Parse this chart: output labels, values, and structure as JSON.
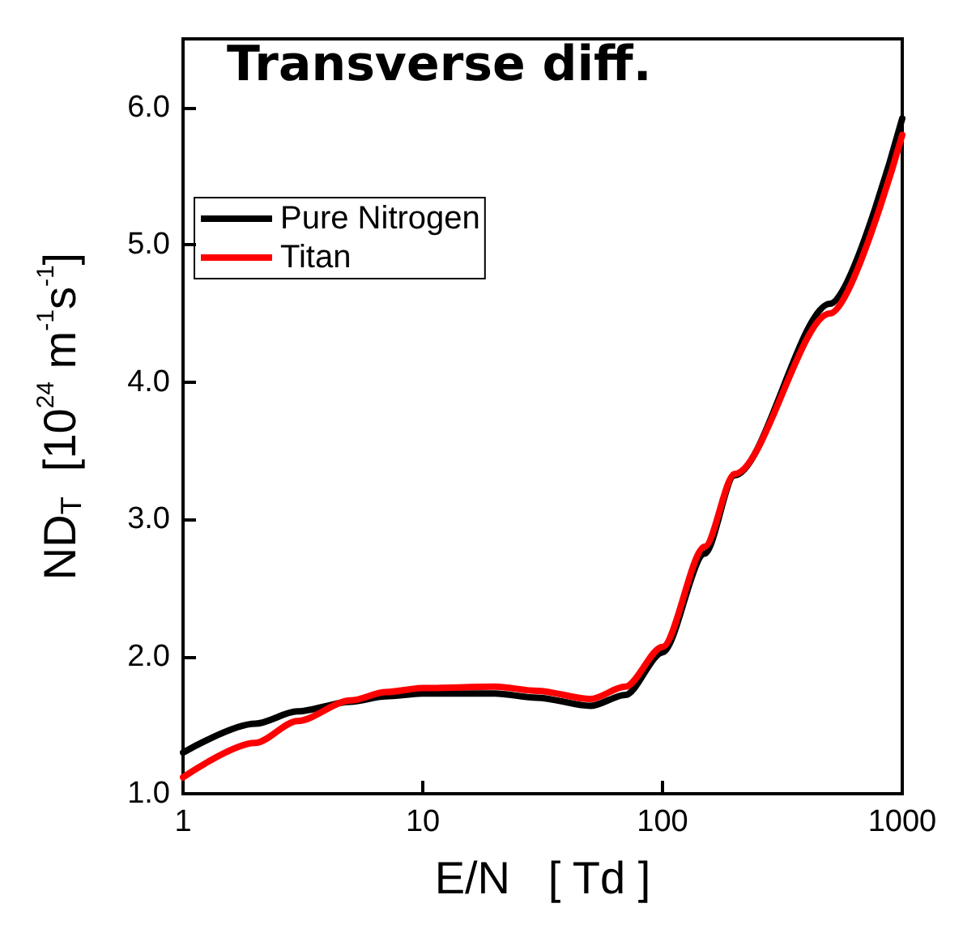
{
  "chart_data": {
    "type": "line",
    "title": "Transverse diff.",
    "xlabel": "E/N   [ Td ]",
    "ylabel": "ND$_{T}$  [10$^{24}$ m$^{-1}$s$^{-1}$]",
    "log": "x",
    "xlim": [
      1,
      1000
    ],
    "xticks": [
      1,
      10,
      100,
      1000
    ],
    "ylim": [
      1.0,
      6.5
    ],
    "yticks": [
      {
        "value": 1,
        "label": "1.0"
      },
      {
        "value": 2,
        "label": "2.0"
      },
      {
        "value": 3,
        "label": "3.0"
      },
      {
        "value": 4,
        "label": "4.0"
      },
      {
        "value": 5,
        "label": "5.0"
      },
      {
        "value": 6,
        "label": "6.0"
      }
    ],
    "grid": false,
    "legend": "top left",
    "marker": "none",
    "line_style": "solid",
    "series": [
      {
        "name": "Pure Nitrogen",
        "color": "#000000",
        "x": [
          1,
          2,
          3,
          5,
          7,
          10,
          20,
          30,
          50,
          70,
          100,
          150,
          200,
          500,
          1000
        ],
        "values": [
          1.3,
          1.51,
          1.6,
          1.67,
          1.71,
          1.73,
          1.73,
          1.7,
          1.64,
          1.72,
          2.03,
          2.75,
          3.32,
          4.57,
          5.92
        ]
      },
      {
        "name": "Titan",
        "color": "#ff0000",
        "x": [
          1,
          2,
          3,
          5,
          7,
          10,
          20,
          30,
          50,
          70,
          100,
          150,
          200,
          500,
          1000
        ],
        "values": [
          1.12,
          1.37,
          1.53,
          1.68,
          1.74,
          1.77,
          1.78,
          1.75,
          1.69,
          1.78,
          2.07,
          2.8,
          3.33,
          4.5,
          5.8
        ]
      }
    ]
  }
}
